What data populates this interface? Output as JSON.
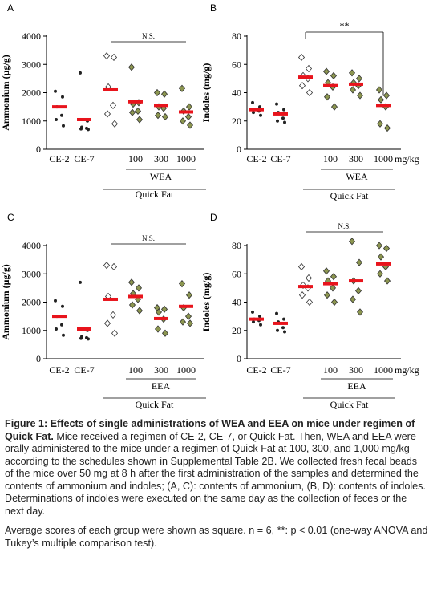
{
  "chart_data": [
    {
      "panel": "A",
      "type": "scatter",
      "ylabel": "Ammonium (μg/g)",
      "ylim": [
        0,
        4000
      ],
      "yticks": [
        "0",
        "1000",
        "2000",
        "3000",
        "4000"
      ],
      "categories": [
        "CE-2",
        "CE-7",
        "",
        "100",
        "300",
        "1000"
      ],
      "group_label": "WEA",
      "outer_label": "Quick Fat",
      "unit_label": "",
      "significance": "N.S.",
      "sig_span": [
        2,
        5
      ],
      "sig_drop": false,
      "means": [
        1500,
        1050,
        2100,
        1680,
        1550,
        1320
      ],
      "points": [
        [
          2050,
          1850,
          1500,
          1200,
          1050,
          830
        ],
        [
          2700,
          1000,
          780,
          740,
          720,
          700
        ],
        [
          3300,
          3250,
          2200,
          1550,
          1250,
          900
        ],
        [
          2900,
          1650,
          1600,
          1350,
          1300,
          1050
        ],
        [
          2000,
          1950,
          1500,
          1450,
          1200,
          1150
        ],
        [
          2150,
          1500,
          1350,
          1150,
          1000,
          850
        ]
      ],
      "markers": [
        "dot",
        "dot",
        "diamond-open",
        "diamond-fill",
        "diamond-fill",
        "diamond-fill"
      ]
    },
    {
      "panel": "B",
      "type": "scatter",
      "ylabel": "Indoles (mg/g)",
      "ylim": [
        0,
        80
      ],
      "yticks": [
        "0",
        "20",
        "40",
        "60",
        "80"
      ],
      "categories": [
        "CE-2",
        "CE-7",
        "",
        "100",
        "300",
        "1000"
      ],
      "group_label": "WEA",
      "outer_label": "Quick Fat",
      "unit_label": "mg/kg",
      "significance": "**",
      "sig_span": [
        2,
        5
      ],
      "sig_drop": true,
      "means": [
        28,
        25,
        51,
        45,
        46,
        31
      ],
      "points": [
        [
          33,
          30,
          28,
          27,
          26,
          24
        ],
        [
          32,
          28,
          26,
          22,
          20,
          19
        ],
        [
          65,
          57,
          52,
          50,
          45,
          40
        ],
        [
          55,
          52,
          47,
          44,
          37,
          30
        ],
        [
          54,
          50,
          47,
          45,
          42,
          38
        ],
        [
          42,
          38,
          35,
          30,
          18,
          15
        ]
      ],
      "markers": [
        "dot",
        "dot",
        "diamond-open",
        "diamond-fill",
        "diamond-fill",
        "diamond-fill"
      ]
    },
    {
      "panel": "C",
      "type": "scatter",
      "ylabel": "Ammonium (μg/g)",
      "ylim": [
        0,
        4000
      ],
      "yticks": [
        "0",
        "1000",
        "2000",
        "3000",
        "4000"
      ],
      "categories": [
        "CE-2",
        "CE-7",
        "",
        "100",
        "300",
        "1000"
      ],
      "group_label": "EEA",
      "outer_label": "Quick Fat",
      "unit_label": "",
      "significance": "N.S.",
      "sig_span": [
        2,
        5
      ],
      "sig_drop": false,
      "means": [
        1500,
        1050,
        2100,
        2200,
        1420,
        1850
      ],
      "points": [
        [
          2050,
          1850,
          1500,
          1200,
          1050,
          830
        ],
        [
          2700,
          1000,
          780,
          740,
          720,
          700
        ],
        [
          3300,
          3250,
          2200,
          1550,
          1250,
          900
        ],
        [
          2700,
          2500,
          2300,
          2100,
          1900,
          1700
        ],
        [
          1800,
          1750,
          1650,
          1400,
          1050,
          900
        ],
        [
          2650,
          2250,
          1800,
          1500,
          1300,
          1250
        ]
      ],
      "markers": [
        "dot",
        "dot",
        "diamond-open",
        "diamond-fill",
        "diamond-fill",
        "diamond-fill"
      ]
    },
    {
      "panel": "D",
      "type": "scatter",
      "ylabel": "Indoles (mg/g)",
      "ylim": [
        0,
        80
      ],
      "yticks": [
        "0",
        "20",
        "40",
        "60",
        "80"
      ],
      "categories": [
        "CE-2",
        "CE-7",
        "",
        "100",
        "300",
        "1000"
      ],
      "group_label": "EEA",
      "outer_label": "Quick Fat",
      "unit_label": "mg/kg",
      "significance": "N.S.",
      "sig_span": [
        2,
        5
      ],
      "sig_drop": false,
      "means": [
        28,
        25,
        51,
        53,
        55,
        67
      ],
      "points": [
        [
          33,
          30,
          28,
          27,
          26,
          24
        ],
        [
          32,
          28,
          26,
          22,
          20,
          19
        ],
        [
          65,
          57,
          52,
          50,
          45,
          40
        ],
        [
          62,
          58,
          55,
          50,
          45,
          40
        ],
        [
          83,
          68,
          55,
          48,
          42,
          33
        ],
        [
          80,
          78,
          72,
          65,
          60,
          55
        ]
      ],
      "markers": [
        "dot",
        "dot",
        "diamond-open",
        "diamond-fill",
        "diamond-fill",
        "diamond-fill"
      ]
    }
  ],
  "caption": {
    "title": "Figure 1: Effects of single administrations of WEA and EEA on mice under regimen of Quick Fat.",
    "body": " Mice received a regimen of CE-2, CE-7, or Quick Fat. Then, WEA and EEA were orally administered to the mice under a regimen of Quick Fat at 100, 300, and 1,000 mg/kg according to the schedules shown in Supplemental Table 2B. We collected fresh fecal beads of the mice over 50 mg at 8 h after the first administration of the samples and determined the contents of ammonium and indoles; (A, C): contents of ammonium, (B, D): contents of indoles. Determinations of indoles were executed on the same day as the collection of feces or the next day.",
    "note": "Average scores of each group were shown as square. n = 6, **: p < 0.01 (one-way ANOVA and Tukey’s multiple comparison test)."
  },
  "colors": {
    "mean_bar": "#e8141c",
    "diamond_fill": "#8c9650",
    "dot": "#222222",
    "axis": "#000000"
  }
}
